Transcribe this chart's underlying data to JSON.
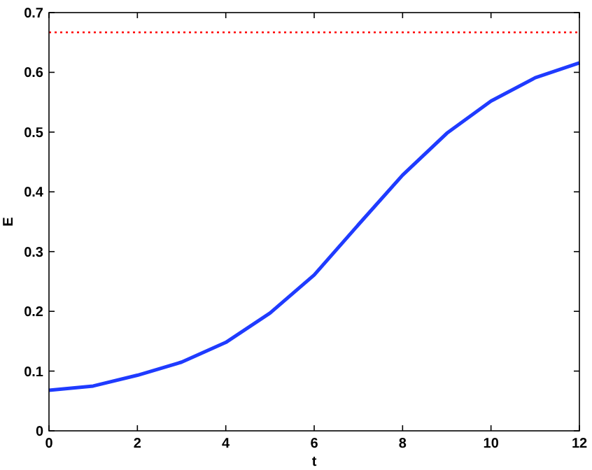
{
  "chart_data": {
    "type": "line",
    "xlabel": "t",
    "ylabel": "E",
    "x": [
      0,
      1,
      2,
      3,
      4,
      5,
      6,
      7,
      8,
      9,
      10,
      11,
      12
    ],
    "series": [
      {
        "color": "#1f3bff",
        "values": [
          0.068,
          0.075,
          0.093,
          0.115,
          0.148,
          0.197,
          0.261,
          0.345,
          0.428,
          0.498,
          0.552,
          0.591,
          0.616
        ]
      }
    ],
    "xlim": [
      0,
      12
    ],
    "xticks": [
      0,
      2,
      4,
      6,
      8,
      10,
      12
    ],
    "ylim": [
      0,
      0.7
    ],
    "yticks": [
      0,
      0.1,
      0.2,
      0.3,
      0.4,
      0.5,
      0.6,
      0.7
    ],
    "ref_lines": [
      {
        "axis": "y",
        "value": 0.667,
        "color": "#ff0000",
        "line_style": "dotted"
      }
    ],
    "grid": false,
    "marker": "none",
    "line_style": "solid"
  }
}
